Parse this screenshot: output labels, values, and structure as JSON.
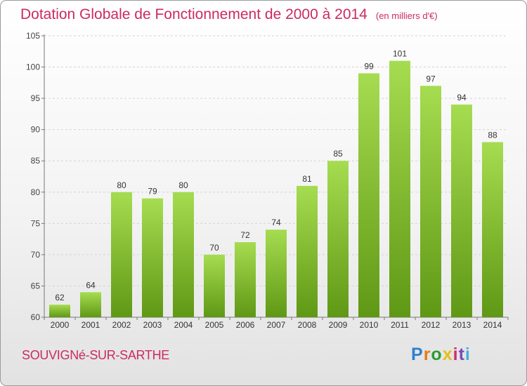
{
  "title": "Dotation Globale de Fonctionnement de 2000 à 2014",
  "unit": "(en milliers d'€)",
  "commune": "SOUVIGNé-SUR-SARTHE",
  "logo": {
    "letters": [
      "P",
      "r",
      "o",
      "x",
      "i",
      "t",
      "i"
    ],
    "colors": [
      "#2f7fd0",
      "#e57a1a",
      "#2f9a3a",
      "#e3c114",
      "#d02e6e",
      "#7a4bb8",
      "#46b0d9"
    ]
  },
  "colors": {
    "bar_light": "#a6dc50",
    "bar_dark": "#5f9815",
    "title": "#cc2a63"
  },
  "chart_data": {
    "type": "bar",
    "title": "Dotation Globale de Fonctionnement de 2000 à 2014",
    "categories": [
      "2000",
      "2001",
      "2002",
      "2003",
      "2004",
      "2005",
      "2006",
      "2007",
      "2008",
      "2009",
      "2010",
      "2011",
      "2012",
      "2013",
      "2014"
    ],
    "values": [
      62,
      64,
      80,
      79,
      80,
      70,
      72,
      74,
      81,
      85,
      99,
      101,
      97,
      94,
      88
    ],
    "ylim": [
      60,
      105
    ],
    "yticks": [
      60,
      65,
      70,
      75,
      80,
      85,
      90,
      95,
      100,
      105
    ],
    "grid": true,
    "data_labels": true
  }
}
